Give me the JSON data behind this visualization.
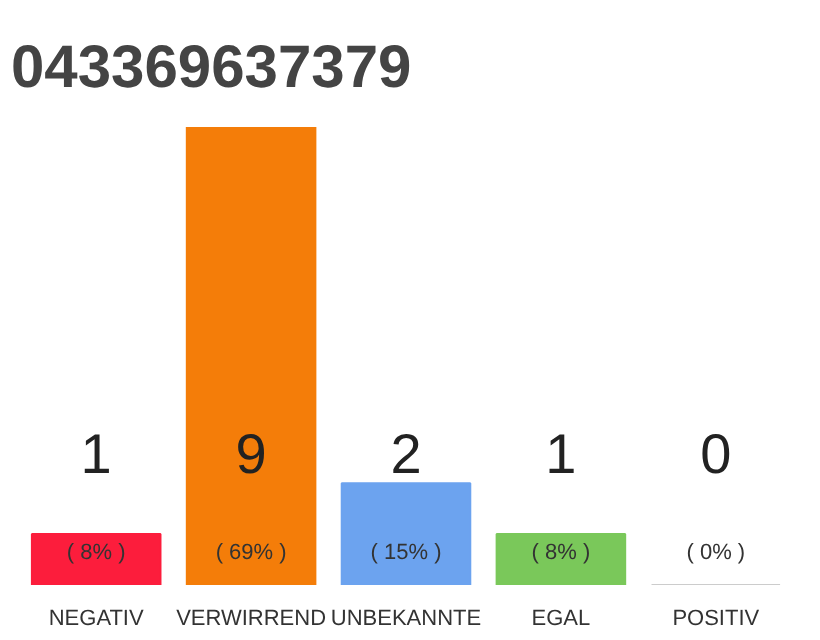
{
  "chart_data": {
    "type": "bar",
    "title": "043369637379",
    "categories": [
      "NEGATIV",
      "VERWIRREND",
      "UNBEKANNTE",
      "EGAL",
      "POSITIV"
    ],
    "values": [
      1,
      9,
      2,
      1,
      0
    ],
    "colors": [
      "#fc1d3c",
      "#f47d09",
      "#6ca3ef",
      "#7ac85a",
      "#cccccc"
    ],
    "data_labels": true,
    "annotations": [
      "( 8% )",
      "( 69% )",
      "( 15% )",
      "( 8% )",
      "( 0% )"
    ]
  }
}
